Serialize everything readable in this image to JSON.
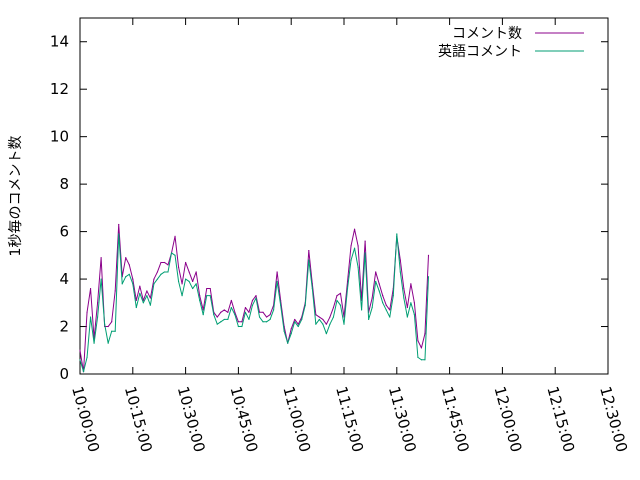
{
  "chart_data": {
    "type": "line",
    "title": "",
    "xlabel": "",
    "ylabel": "1秒毎のコメント数",
    "xlim": [
      "10:00:00",
      "12:30:00"
    ],
    "ylim": [
      0,
      15
    ],
    "x_ticks": [
      "10:00:00",
      "10:15:00",
      "10:30:00",
      "10:45:00",
      "11:00:00",
      "11:15:00",
      "11:30:00",
      "11:45:00",
      "12:00:00",
      "12:15:00",
      "12:30:00"
    ],
    "y_ticks": [
      "0",
      "2",
      "4",
      "6",
      "8",
      "10",
      "12",
      "14"
    ],
    "grid": false,
    "legend_position": "top-right",
    "colors": {
      "コメント数": "#8b008b",
      "英語コメント": "#009e73"
    },
    "series": [
      {
        "name": "コメント数",
        "points": [
          [
            "10:00:00",
            1.0
          ],
          [
            "10:01:00",
            0.1
          ],
          [
            "10:02:00",
            2.6
          ],
          [
            "10:03:00",
            3.6
          ],
          [
            "10:04:00",
            1.5
          ],
          [
            "10:05:00",
            3.0
          ],
          [
            "10:06:00",
            4.9
          ],
          [
            "10:07:00",
            2.0
          ],
          [
            "10:08:00",
            2.0
          ],
          [
            "10:09:00",
            2.2
          ],
          [
            "10:10:00",
            3.5
          ],
          [
            "10:11:00",
            6.3
          ],
          [
            "10:12:00",
            4.1
          ],
          [
            "10:13:00",
            4.9
          ],
          [
            "10:14:00",
            4.6
          ],
          [
            "10:15:00",
            4.0
          ],
          [
            "10:16:00",
            3.1
          ],
          [
            "10:17:00",
            3.7
          ],
          [
            "10:18:00",
            3.1
          ],
          [
            "10:19:00",
            3.5
          ],
          [
            "10:20:00",
            3.2
          ],
          [
            "10:21:00",
            4.0
          ],
          [
            "10:22:00",
            4.3
          ],
          [
            "10:23:00",
            4.7
          ],
          [
            "10:24:00",
            4.7
          ],
          [
            "10:25:00",
            4.6
          ],
          [
            "10:26:00",
            5.1
          ],
          [
            "10:27:00",
            5.8
          ],
          [
            "10:28:00",
            4.5
          ],
          [
            "10:29:00",
            3.8
          ],
          [
            "10:30:00",
            4.7
          ],
          [
            "10:31:00",
            4.3
          ],
          [
            "10:32:00",
            3.9
          ],
          [
            "10:33:00",
            4.3
          ],
          [
            "10:34:00",
            3.3
          ],
          [
            "10:35:00",
            2.7
          ],
          [
            "10:36:00",
            3.6
          ],
          [
            "10:37:00",
            3.6
          ],
          [
            "10:38:00",
            2.6
          ],
          [
            "10:39:00",
            2.4
          ],
          [
            "10:40:00",
            2.6
          ],
          [
            "10:41:00",
            2.7
          ],
          [
            "10:42:00",
            2.6
          ],
          [
            "10:43:00",
            3.1
          ],
          [
            "10:44:00",
            2.6
          ],
          [
            "10:45:00",
            2.2
          ],
          [
            "10:46:00",
            2.2
          ],
          [
            "10:47:00",
            2.8
          ],
          [
            "10:48:00",
            2.6
          ],
          [
            "10:49:00",
            3.1
          ],
          [
            "10:50:00",
            3.3
          ],
          [
            "10:51:00",
            2.6
          ],
          [
            "10:52:00",
            2.6
          ],
          [
            "10:53:00",
            2.4
          ],
          [
            "10:54:00",
            2.5
          ],
          [
            "10:55:00",
            2.9
          ],
          [
            "10:56:00",
            4.3
          ],
          [
            "10:57:00",
            3.1
          ],
          [
            "10:58:00",
            2.0
          ],
          [
            "10:59:00",
            1.3
          ],
          [
            "11:00:00",
            1.9
          ],
          [
            "11:01:00",
            2.3
          ],
          [
            "11:02:00",
            2.1
          ],
          [
            "11:03:00",
            2.4
          ],
          [
            "11:04:00",
            3.0
          ],
          [
            "11:05:00",
            5.2
          ],
          [
            "11:06:00",
            3.8
          ],
          [
            "11:07:00",
            2.5
          ],
          [
            "11:08:00",
            2.4
          ],
          [
            "11:09:00",
            2.3
          ],
          [
            "11:10:00",
            2.1
          ],
          [
            "11:11:00",
            2.4
          ],
          [
            "11:12:00",
            2.8
          ],
          [
            "11:13:00",
            3.3
          ],
          [
            "11:14:00",
            3.4
          ],
          [
            "11:15:00",
            2.4
          ],
          [
            "11:16:00",
            3.9
          ],
          [
            "11:17:00",
            5.4
          ],
          [
            "11:18:00",
            6.1
          ],
          [
            "11:19:00",
            5.4
          ],
          [
            "11:20:00",
            3.1
          ],
          [
            "11:21:00",
            5.6
          ],
          [
            "11:22:00",
            2.6
          ],
          [
            "11:23:00",
            3.2
          ],
          [
            "11:24:00",
            4.3
          ],
          [
            "11:25:00",
            3.8
          ],
          [
            "11:26:00",
            3.3
          ],
          [
            "11:27:00",
            2.9
          ],
          [
            "11:28:00",
            2.7
          ],
          [
            "11:29:00",
            3.6
          ],
          [
            "11:30:00",
            5.8
          ],
          [
            "11:31:00",
            4.8
          ],
          [
            "11:32:00",
            3.6
          ],
          [
            "11:33:00",
            2.8
          ],
          [
            "11:34:00",
            3.8
          ],
          [
            "11:35:00",
            3.0
          ],
          [
            "11:36:00",
            1.4
          ],
          [
            "11:37:00",
            1.1
          ],
          [
            "11:38:00",
            1.7
          ],
          [
            "11:39:00",
            5.0
          ]
        ]
      },
      {
        "name": "英語コメント",
        "points": [
          [
            "10:00:00",
            0.6
          ],
          [
            "10:01:00",
            0.1
          ],
          [
            "10:02:00",
            0.7
          ],
          [
            "10:03:00",
            2.4
          ],
          [
            "10:04:00",
            1.3
          ],
          [
            "10:05:00",
            2.4
          ],
          [
            "10:06:00",
            4.0
          ],
          [
            "10:07:00",
            2.1
          ],
          [
            "10:08:00",
            1.3
          ],
          [
            "10:09:00",
            1.8
          ],
          [
            "10:10:00",
            1.8
          ],
          [
            "10:11:00",
            5.9
          ],
          [
            "10:12:00",
            3.8
          ],
          [
            "10:13:00",
            4.1
          ],
          [
            "10:14:00",
            4.2
          ],
          [
            "10:15:00",
            3.8
          ],
          [
            "10:16:00",
            2.8
          ],
          [
            "10:17:00",
            3.4
          ],
          [
            "10:18:00",
            3.0
          ],
          [
            "10:19:00",
            3.3
          ],
          [
            "10:20:00",
            2.9
          ],
          [
            "10:21:00",
            3.8
          ],
          [
            "10:22:00",
            4.0
          ],
          [
            "10:23:00",
            4.2
          ],
          [
            "10:24:00",
            4.3
          ],
          [
            "10:25:00",
            4.3
          ],
          [
            "10:26:00",
            5.1
          ],
          [
            "10:27:00",
            5.0
          ],
          [
            "10:28:00",
            3.9
          ],
          [
            "10:29:00",
            3.3
          ],
          [
            "10:30:00",
            4.0
          ],
          [
            "10:31:00",
            3.9
          ],
          [
            "10:32:00",
            3.6
          ],
          [
            "10:33:00",
            3.8
          ],
          [
            "10:34:00",
            3.1
          ],
          [
            "10:35:00",
            2.5
          ],
          [
            "10:36:00",
            3.3
          ],
          [
            "10:37:00",
            3.3
          ],
          [
            "10:38:00",
            2.5
          ],
          [
            "10:39:00",
            2.1
          ],
          [
            "10:40:00",
            2.2
          ],
          [
            "10:41:00",
            2.3
          ],
          [
            "10:42:00",
            2.3
          ],
          [
            "10:43:00",
            2.8
          ],
          [
            "10:44:00",
            2.5
          ],
          [
            "10:45:00",
            2.0
          ],
          [
            "10:46:00",
            2.0
          ],
          [
            "10:47:00",
            2.6
          ],
          [
            "10:48:00",
            2.3
          ],
          [
            "10:49:00",
            2.9
          ],
          [
            "10:50:00",
            3.2
          ],
          [
            "10:51:00",
            2.4
          ],
          [
            "10:52:00",
            2.2
          ],
          [
            "10:53:00",
            2.2
          ],
          [
            "10:54:00",
            2.3
          ],
          [
            "10:55:00",
            2.7
          ],
          [
            "10:56:00",
            3.9
          ],
          [
            "10:57:00",
            2.9
          ],
          [
            "10:58:00",
            1.8
          ],
          [
            "10:59:00",
            1.3
          ],
          [
            "11:00:00",
            1.7
          ],
          [
            "11:01:00",
            2.2
          ],
          [
            "11:02:00",
            2.0
          ],
          [
            "11:03:00",
            2.3
          ],
          [
            "11:04:00",
            2.9
          ],
          [
            "11:05:00",
            4.8
          ],
          [
            "11:06:00",
            3.6
          ],
          [
            "11:07:00",
            2.1
          ],
          [
            "11:08:00",
            2.3
          ],
          [
            "11:09:00",
            2.1
          ],
          [
            "11:10:00",
            1.7
          ],
          [
            "11:11:00",
            2.1
          ],
          [
            "11:12:00",
            2.4
          ],
          [
            "11:13:00",
            3.1
          ],
          [
            "11:14:00",
            2.9
          ],
          [
            "11:15:00",
            2.1
          ],
          [
            "11:16:00",
            3.6
          ],
          [
            "11:17:00",
            4.8
          ],
          [
            "11:18:00",
            5.3
          ],
          [
            "11:19:00",
            4.5
          ],
          [
            "11:20:00",
            2.7
          ],
          [
            "11:21:00",
            5.1
          ],
          [
            "11:22:00",
            2.3
          ],
          [
            "11:23:00",
            2.8
          ],
          [
            "11:24:00",
            3.9
          ],
          [
            "11:25:00",
            3.5
          ],
          [
            "11:26:00",
            3.0
          ],
          [
            "11:27:00",
            2.7
          ],
          [
            "11:28:00",
            2.4
          ],
          [
            "11:29:00",
            3.3
          ],
          [
            "11:30:00",
            5.9
          ],
          [
            "11:31:00",
            4.3
          ],
          [
            "11:32:00",
            3.2
          ],
          [
            "11:33:00",
            2.4
          ],
          [
            "11:34:00",
            3.0
          ],
          [
            "11:35:00",
            2.5
          ],
          [
            "11:36:00",
            0.7
          ],
          [
            "11:37:00",
            0.6
          ],
          [
            "11:38:00",
            0.6
          ],
          [
            "11:39:00",
            4.1
          ]
        ]
      }
    ]
  }
}
